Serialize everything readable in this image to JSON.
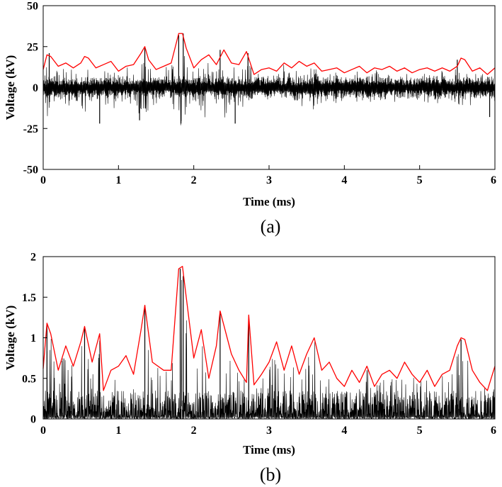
{
  "colors": {
    "signal": "#000000",
    "envelope": "#ff0000",
    "axis": "#000000",
    "background": "#ffffff"
  },
  "chart_data": [
    {
      "id": "a",
      "type": "line",
      "panel_label": "(a)",
      "title": "",
      "xlabel": "Time (ms)",
      "ylabel": "Voltage (kV)",
      "xlim": [
        0,
        6
      ],
      "ylim": [
        -50,
        50
      ],
      "xticks": [
        0,
        1,
        2,
        3,
        4,
        5,
        6
      ],
      "xtick_labels": [
        "0",
        "1",
        "2",
        "3",
        "4",
        "5",
        "6"
      ],
      "yticks": [
        -50,
        -25,
        0,
        25,
        50
      ],
      "ytick_labels": [
        "-50",
        "-25",
        "0",
        "25",
        "50"
      ],
      "grid": false,
      "signal": {
        "name": "measured voltage",
        "kind": "noisy-oscillation",
        "samples": 1600,
        "baseline_amplitude": 9,
        "peak_envelope": [
          [
            0,
            11
          ],
          [
            0.05,
            20
          ],
          [
            0.1,
            19
          ],
          [
            0.2,
            13
          ],
          [
            0.3,
            15
          ],
          [
            0.4,
            12
          ],
          [
            0.5,
            15
          ],
          [
            0.55,
            19
          ],
          [
            0.6,
            18
          ],
          [
            0.7,
            12
          ],
          [
            0.8,
            14
          ],
          [
            0.9,
            16
          ],
          [
            1.0,
            10
          ],
          [
            1.1,
            13
          ],
          [
            1.2,
            14
          ],
          [
            1.3,
            21
          ],
          [
            1.35,
            25
          ],
          [
            1.4,
            17
          ],
          [
            1.5,
            11
          ],
          [
            1.6,
            13
          ],
          [
            1.7,
            15
          ],
          [
            1.8,
            33
          ],
          [
            1.85,
            33
          ],
          [
            1.9,
            24
          ],
          [
            2.0,
            12
          ],
          [
            2.1,
            17
          ],
          [
            2.2,
            20
          ],
          [
            2.3,
            14
          ],
          [
            2.4,
            23
          ],
          [
            2.5,
            15
          ],
          [
            2.6,
            14
          ],
          [
            2.7,
            22
          ],
          [
            2.75,
            15
          ],
          [
            2.8,
            8
          ],
          [
            2.9,
            11
          ],
          [
            3.0,
            12
          ],
          [
            3.1,
            10
          ],
          [
            3.2,
            15
          ],
          [
            3.3,
            12
          ],
          [
            3.4,
            16
          ],
          [
            3.5,
            13
          ],
          [
            3.6,
            15
          ],
          [
            3.7,
            10
          ],
          [
            3.8,
            11
          ],
          [
            3.9,
            12
          ],
          [
            4.0,
            9
          ],
          [
            4.1,
            11
          ],
          [
            4.2,
            13
          ],
          [
            4.3,
            9
          ],
          [
            4.4,
            12
          ],
          [
            4.5,
            11
          ],
          [
            4.6,
            13
          ],
          [
            4.7,
            10
          ],
          [
            4.8,
            12
          ],
          [
            4.9,
            9
          ],
          [
            5.0,
            11
          ],
          [
            5.1,
            12
          ],
          [
            5.2,
            10
          ],
          [
            5.3,
            12
          ],
          [
            5.4,
            10
          ],
          [
            5.5,
            13
          ],
          [
            5.55,
            18
          ],
          [
            5.6,
            17
          ],
          [
            5.7,
            10
          ],
          [
            5.8,
            12
          ],
          [
            5.9,
            8
          ],
          [
            6.0,
            12
          ]
        ],
        "spikes": [
          [
            1.8,
            32
          ],
          [
            1.83,
            -22
          ],
          [
            1.86,
            33
          ],
          [
            2.35,
            23
          ],
          [
            2.55,
            -22
          ],
          [
            1.35,
            24
          ],
          [
            2.72,
            21
          ],
          [
            0.75,
            -22
          ],
          [
            1.28,
            -20
          ],
          [
            5.5,
            17
          ],
          [
            5.93,
            -18
          ],
          [
            0.08,
            21
          ]
        ]
      },
      "series": [
        {
          "name": "upper envelope",
          "color": "#ff0000",
          "x": [
            0,
            0.05,
            0.1,
            0.2,
            0.3,
            0.4,
            0.5,
            0.55,
            0.6,
            0.7,
            0.8,
            0.9,
            1.0,
            1.1,
            1.2,
            1.3,
            1.35,
            1.4,
            1.5,
            1.6,
            1.7,
            1.8,
            1.85,
            1.9,
            2.0,
            2.1,
            2.2,
            2.3,
            2.4,
            2.5,
            2.6,
            2.7,
            2.75,
            2.8,
            2.9,
            3.0,
            3.1,
            3.2,
            3.3,
            3.4,
            3.5,
            3.6,
            3.7,
            3.8,
            3.9,
            4.0,
            4.1,
            4.2,
            4.3,
            4.4,
            4.5,
            4.6,
            4.7,
            4.8,
            4.9,
            5.0,
            5.1,
            5.2,
            5.3,
            5.4,
            5.5,
            5.55,
            5.6,
            5.7,
            5.8,
            5.9,
            6.0
          ],
          "values": [
            11,
            20,
            19,
            13,
            15,
            12,
            15,
            19,
            18,
            12,
            14,
            16,
            10,
            13,
            14,
            21,
            25,
            17,
            11,
            13,
            15,
            33,
            33,
            24,
            12,
            17,
            20,
            14,
            23,
            15,
            14,
            22,
            15,
            8,
            11,
            12,
            10,
            15,
            12,
            16,
            13,
            15,
            10,
            11,
            12,
            9,
            11,
            13,
            9,
            12,
            11,
            13,
            10,
            12,
            9,
            11,
            12,
            10,
            12,
            10,
            13,
            18,
            17,
            10,
            12,
            8,
            12
          ]
        }
      ]
    },
    {
      "id": "b",
      "type": "line",
      "panel_label": "(b)",
      "title": "",
      "xlabel": "Time (ms)",
      "ylabel": "Voltage (kV)",
      "xlim": [
        0,
        6
      ],
      "ylim": [
        0,
        2
      ],
      "xticks": [
        0,
        1,
        2,
        3,
        4,
        5,
        6
      ],
      "xtick_labels": [
        "0",
        "1",
        "2",
        "3",
        "4",
        "5",
        "6"
      ],
      "yticks": [
        0,
        0.5,
        1,
        1.5,
        2
      ],
      "ytick_labels": [
        "0",
        "0.5",
        "1",
        "1.5",
        "2"
      ],
      "grid": false,
      "signal": {
        "name": "rectified voltage",
        "kind": "noisy-positive",
        "samples": 1600,
        "baseline_amplitude": 0.35,
        "peak_envelope": [
          [
            0,
            0.62
          ],
          [
            0.05,
            1.18
          ],
          [
            0.1,
            1.05
          ],
          [
            0.2,
            0.6
          ],
          [
            0.3,
            0.9
          ],
          [
            0.4,
            0.65
          ],
          [
            0.5,
            0.95
          ],
          [
            0.55,
            1.14
          ],
          [
            0.65,
            0.7
          ],
          [
            0.75,
            1.05
          ],
          [
            0.8,
            0.35
          ],
          [
            0.9,
            0.6
          ],
          [
            1.0,
            0.65
          ],
          [
            1.1,
            0.78
          ],
          [
            1.2,
            0.55
          ],
          [
            1.3,
            1.1
          ],
          [
            1.35,
            1.4
          ],
          [
            1.45,
            0.7
          ],
          [
            1.6,
            0.6
          ],
          [
            1.7,
            0.6
          ],
          [
            1.8,
            1.85
          ],
          [
            1.85,
            1.88
          ],
          [
            1.9,
            1.5
          ],
          [
            2.0,
            0.75
          ],
          [
            2.1,
            1.1
          ],
          [
            2.2,
            0.5
          ],
          [
            2.3,
            0.9
          ],
          [
            2.35,
            1.33
          ],
          [
            2.5,
            0.8
          ],
          [
            2.6,
            0.6
          ],
          [
            2.7,
            0.45
          ],
          [
            2.73,
            1.28
          ],
          [
            2.8,
            0.42
          ],
          [
            2.9,
            0.55
          ],
          [
            3.0,
            0.7
          ],
          [
            3.1,
            0.95
          ],
          [
            3.2,
            0.6
          ],
          [
            3.3,
            0.9
          ],
          [
            3.4,
            0.55
          ],
          [
            3.5,
            0.8
          ],
          [
            3.6,
            1.0
          ],
          [
            3.7,
            0.6
          ],
          [
            3.8,
            0.7
          ],
          [
            3.9,
            0.5
          ],
          [
            4.0,
            0.4
          ],
          [
            4.1,
            0.6
          ],
          [
            4.2,
            0.45
          ],
          [
            4.3,
            0.65
          ],
          [
            4.4,
            0.4
          ],
          [
            4.5,
            0.55
          ],
          [
            4.6,
            0.6
          ],
          [
            4.7,
            0.5
          ],
          [
            4.8,
            0.7
          ],
          [
            4.9,
            0.55
          ],
          [
            5.0,
            0.45
          ],
          [
            5.1,
            0.6
          ],
          [
            5.2,
            0.4
          ],
          [
            5.3,
            0.55
          ],
          [
            5.4,
            0.6
          ],
          [
            5.5,
            0.9
          ],
          [
            5.55,
            1.0
          ],
          [
            5.6,
            0.98
          ],
          [
            5.7,
            0.6
          ],
          [
            5.8,
            0.45
          ],
          [
            5.9,
            0.35
          ],
          [
            6.0,
            0.65
          ]
        ],
        "spikes": [
          [
            1.82,
            1.85
          ],
          [
            1.86,
            1.76
          ],
          [
            0.05,
            1.15
          ],
          [
            0.55,
            1.12
          ],
          [
            1.35,
            1.4
          ],
          [
            2.35,
            1.3
          ],
          [
            2.73,
            1.25
          ],
          [
            5.55,
            0.98
          ]
        ]
      },
      "series": [
        {
          "name": "upper envelope",
          "color": "#ff0000",
          "x": [
            0,
            0.05,
            0.1,
            0.2,
            0.3,
            0.4,
            0.5,
            0.55,
            0.65,
            0.75,
            0.8,
            0.9,
            1.0,
            1.1,
            1.2,
            1.3,
            1.35,
            1.45,
            1.6,
            1.7,
            1.8,
            1.85,
            1.9,
            2.0,
            2.1,
            2.2,
            2.3,
            2.35,
            2.5,
            2.6,
            2.7,
            2.73,
            2.8,
            2.9,
            3.0,
            3.1,
            3.2,
            3.3,
            3.4,
            3.5,
            3.6,
            3.7,
            3.8,
            3.9,
            4.0,
            4.1,
            4.2,
            4.3,
            4.4,
            4.5,
            4.6,
            4.7,
            4.8,
            4.9,
            5.0,
            5.1,
            5.2,
            5.3,
            5.4,
            5.5,
            5.55,
            5.6,
            5.7,
            5.8,
            5.9,
            6.0
          ],
          "values": [
            0.62,
            1.18,
            1.05,
            0.6,
            0.9,
            0.65,
            0.95,
            1.14,
            0.7,
            1.05,
            0.35,
            0.6,
            0.65,
            0.78,
            0.55,
            1.1,
            1.4,
            0.7,
            0.6,
            0.6,
            1.85,
            1.88,
            1.5,
            0.75,
            1.1,
            0.5,
            0.9,
            1.33,
            0.8,
            0.6,
            0.45,
            1.28,
            0.42,
            0.55,
            0.7,
            0.95,
            0.6,
            0.9,
            0.55,
            0.8,
            1.0,
            0.6,
            0.7,
            0.5,
            0.4,
            0.6,
            0.45,
            0.65,
            0.4,
            0.55,
            0.6,
            0.5,
            0.7,
            0.55,
            0.45,
            0.6,
            0.4,
            0.55,
            0.6,
            0.9,
            1.0,
            0.98,
            0.6,
            0.45,
            0.35,
            0.65
          ]
        }
      ]
    }
  ]
}
